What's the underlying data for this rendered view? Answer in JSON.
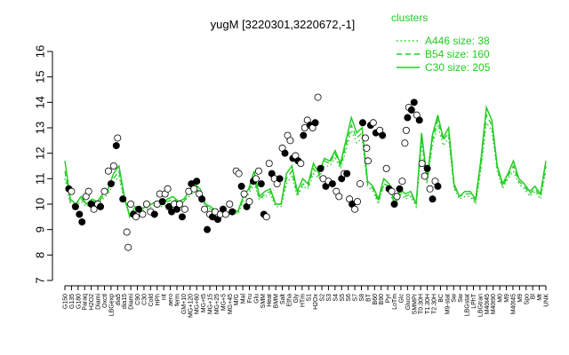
{
  "chart_data": {
    "type": "line",
    "title": "yugM [3220301,3220672,-1]",
    "xlabel": "",
    "ylabel": "",
    "ylim": [
      7,
      16
    ],
    "yticks": [
      7,
      8,
      9,
      10,
      11,
      12,
      13,
      14,
      15,
      16
    ],
    "grid": false,
    "legend_position": "top-right",
    "legend": {
      "title": "clusters",
      "entries": [
        {
          "label": "A446 size: 38",
          "style": "dotted"
        },
        {
          "label": "B54 size: 160",
          "style": "dashed"
        },
        {
          "label": "C30 size: 205",
          "style": "solid"
        }
      ]
    },
    "colors": {
      "series": "#22cc22",
      "open_points": "#ffffff",
      "filled_points": "#000000"
    },
    "x_tick_labels": [
      "G150",
      "G135",
      "G180",
      "Paraq",
      "H2O2",
      "Diami",
      "Oxctl",
      "LBGexp",
      "dia5",
      "dia15",
      "Diami",
      "C90",
      "C30",
      "Cold",
      "HPh",
      "nit",
      "aero",
      "ferm",
      "GM+10",
      "MG+120",
      "MG+60",
      "MG+t5",
      "MG+15",
      "MG+25",
      "MG+5",
      "MG+45",
      "M/G",
      "Mal",
      "Fru",
      "Glu",
      "SMM",
      "Heat",
      "BMM",
      "Salt",
      "Etha",
      "Gly",
      "HTm",
      "S1",
      "H2Ox",
      "S2",
      "S3",
      "S4",
      "S5",
      "S6",
      "S7",
      "S8",
      "BT",
      "B60",
      "B90",
      "Pyr",
      "LoTm",
      "Glc",
      "Gluco",
      "SMMPr",
      "T0.30H",
      "T1.30H",
      "T2.30H",
      "BC",
      "M9-stat",
      "Sw",
      "Sw",
      "LBGstat",
      "LPhT",
      "LBGtran",
      "M40t45",
      "M40t90",
      "M0",
      "M9",
      "M40t45",
      "M9",
      "Spo",
      "Bl",
      "Mt",
      "UNK"
    ],
    "series": [
      {
        "name": "C30 size: 205",
        "style": "solid",
        "values": [
          11.7,
          10.2,
          10.0,
          10.3,
          10.0,
          10.2,
          10.1,
          10.4,
          10.6,
          11.2,
          11.5,
          10.3,
          9.5,
          9.9,
          9.8,
          9.9,
          10.0,
          10.1,
          10.0,
          10.2,
          10.3,
          10.1,
          10.2,
          10.5,
          10.8,
          10.6,
          10.0,
          9.9,
          9.7,
          9.6,
          9.6,
          9.8,
          9.7,
          10.3,
          10.6,
          11.3,
          10.3,
          10.5,
          10.6,
          10.0,
          10.0,
          11.2,
          11.5,
          10.5,
          11.0,
          10.8,
          11.6,
          11.2,
          11.8,
          11.7,
          12.1,
          11.6,
          12.5,
          13.4,
          12.8,
          13.0,
          10.9,
          10.7,
          10.2,
          11.0,
          10.8,
          10.0,
          10.6,
          10.4,
          10.5,
          10.0,
          12.8,
          11.0,
          12.7,
          13.5,
          12.6,
          13.0,
          10.8,
          10.3,
          10.5,
          10.5,
          10.2,
          11.8,
          13.8,
          13.3,
          11.5,
          10.8,
          11.2,
          11.7,
          11.0,
          10.8,
          10.5,
          10.7,
          10.4,
          11.7
        ]
      },
      {
        "name": "B54 size: 160",
        "style": "dashed",
        "values": [
          11.3,
          10.1,
          10.0,
          10.2,
          10.0,
          10.2,
          10.0,
          10.3,
          10.5,
          11.0,
          11.3,
          10.2,
          9.6,
          9.9,
          9.8,
          9.9,
          10.0,
          10.1,
          10.0,
          10.1,
          10.2,
          10.1,
          10.1,
          10.4,
          10.6,
          10.5,
          10.0,
          9.8,
          9.7,
          9.6,
          9.6,
          9.7,
          9.7,
          10.2,
          10.5,
          11.0,
          10.2,
          10.4,
          10.5,
          10.0,
          10.0,
          11.0,
          11.3,
          10.4,
          10.8,
          10.7,
          11.4,
          11.1,
          11.7,
          11.6,
          12.0,
          11.5,
          12.3,
          13.1,
          12.6,
          12.8,
          10.8,
          10.6,
          10.1,
          10.8,
          10.7,
          10.0,
          10.5,
          10.3,
          10.4,
          10.0,
          12.6,
          10.9,
          12.5,
          13.3,
          12.5,
          12.8,
          10.7,
          10.3,
          10.4,
          10.4,
          10.1,
          11.6,
          13.5,
          13.1,
          11.4,
          10.7,
          11.1,
          11.5,
          10.9,
          10.7,
          10.4,
          10.6,
          10.3,
          11.5
        ]
      },
      {
        "name": "A446 size: 38",
        "style": "dotted",
        "values": [
          11.0,
          10.0,
          9.9,
          10.1,
          9.9,
          10.1,
          10.0,
          10.2,
          10.4,
          10.8,
          11.1,
          10.1,
          9.6,
          9.8,
          9.7,
          9.8,
          9.9,
          10.0,
          9.9,
          10.0,
          10.1,
          10.0,
          10.1,
          10.3,
          10.5,
          10.4,
          9.9,
          9.8,
          9.6,
          9.6,
          9.5,
          9.7,
          9.6,
          10.1,
          10.4,
          10.8,
          10.2,
          10.3,
          10.4,
          9.9,
          9.9,
          10.8,
          11.1,
          10.3,
          10.7,
          10.6,
          11.2,
          11.0,
          11.5,
          11.5,
          11.8,
          11.4,
          12.1,
          12.9,
          12.4,
          12.6,
          10.7,
          10.5,
          10.0,
          10.7,
          10.6,
          9.9,
          10.4,
          10.2,
          10.3,
          9.9,
          12.4,
          10.8,
          12.3,
          13.1,
          12.3,
          12.6,
          10.6,
          10.2,
          10.3,
          10.3,
          10.0,
          11.4,
          13.2,
          12.9,
          11.3,
          10.6,
          11.0,
          11.3,
          10.8,
          10.6,
          10.3,
          10.5,
          10.2,
          11.3
        ]
      }
    ],
    "points": [
      {
        "x": 0.6,
        "y": 10.6,
        "f": 1
      },
      {
        "x": 1.0,
        "y": 10.5,
        "f": 0
      },
      {
        "x": 1.6,
        "y": 9.9,
        "f": 1
      },
      {
        "x": 2.2,
        "y": 9.6,
        "f": 1
      },
      {
        "x": 2.6,
        "y": 9.3,
        "f": 1
      },
      {
        "x": 3.2,
        "y": 10.3,
        "f": 0
      },
      {
        "x": 3.6,
        "y": 10.5,
        "f": 0
      },
      {
        "x": 4.0,
        "y": 10.0,
        "f": 1
      },
      {
        "x": 4.4,
        "y": 9.8,
        "f": 0
      },
      {
        "x": 5.0,
        "y": 10.0,
        "f": 0
      },
      {
        "x": 5.4,
        "y": 9.9,
        "f": 1
      },
      {
        "x": 6.0,
        "y": 10.5,
        "f": 0
      },
      {
        "x": 6.6,
        "y": 11.3,
        "f": 0
      },
      {
        "x": 7.0,
        "y": 10.8,
        "f": 1
      },
      {
        "x": 7.4,
        "y": 11.5,
        "f": 0
      },
      {
        "x": 7.8,
        "y": 12.3,
        "f": 1
      },
      {
        "x": 8.0,
        "y": 12.6,
        "f": 0
      },
      {
        "x": 8.8,
        "y": 10.2,
        "f": 1
      },
      {
        "x": 9.4,
        "y": 8.9,
        "f": 0
      },
      {
        "x": 9.6,
        "y": 8.3,
        "f": 0
      },
      {
        "x": 10.0,
        "y": 10.0,
        "f": 0
      },
      {
        "x": 10.4,
        "y": 9.6,
        "f": 1
      },
      {
        "x": 10.8,
        "y": 9.5,
        "f": 0
      },
      {
        "x": 11.2,
        "y": 9.8,
        "f": 1
      },
      {
        "x": 11.8,
        "y": 9.6,
        "f": 0
      },
      {
        "x": 12.4,
        "y": 10.0,
        "f": 0
      },
      {
        "x": 13.0,
        "y": 9.7,
        "f": 0
      },
      {
        "x": 13.6,
        "y": 9.6,
        "f": 1
      },
      {
        "x": 14.0,
        "y": 10.0,
        "f": 0
      },
      {
        "x": 14.4,
        "y": 10.4,
        "f": 0
      },
      {
        "x": 14.8,
        "y": 10.1,
        "f": 1
      },
      {
        "x": 15.2,
        "y": 10.4,
        "f": 0
      },
      {
        "x": 15.6,
        "y": 10.6,
        "f": 0
      },
      {
        "x": 15.8,
        "y": 9.9,
        "f": 1
      },
      {
        "x": 16.2,
        "y": 9.7,
        "f": 1
      },
      {
        "x": 16.6,
        "y": 10.0,
        "f": 0
      },
      {
        "x": 17.0,
        "y": 9.8,
        "f": 1
      },
      {
        "x": 17.4,
        "y": 10.0,
        "f": 0
      },
      {
        "x": 17.8,
        "y": 9.5,
        "f": 1
      },
      {
        "x": 18.2,
        "y": 9.8,
        "f": 0
      },
      {
        "x": 18.8,
        "y": 10.5,
        "f": 0
      },
      {
        "x": 19.2,
        "y": 10.8,
        "f": 1
      },
      {
        "x": 19.6,
        "y": 10.6,
        "f": 0
      },
      {
        "x": 20.0,
        "y": 10.9,
        "f": 1
      },
      {
        "x": 20.4,
        "y": 10.4,
        "f": 0
      },
      {
        "x": 20.8,
        "y": 10.2,
        "f": 1
      },
      {
        "x": 21.2,
        "y": 9.8,
        "f": 0
      },
      {
        "x": 21.6,
        "y": 9.0,
        "f": 1
      },
      {
        "x": 22.0,
        "y": 9.6,
        "f": 0
      },
      {
        "x": 22.4,
        "y": 9.5,
        "f": 1
      },
      {
        "x": 22.8,
        "y": 9.7,
        "f": 0
      },
      {
        "x": 23.2,
        "y": 9.4,
        "f": 1
      },
      {
        "x": 23.6,
        "y": 9.6,
        "f": 0
      },
      {
        "x": 24.0,
        "y": 9.8,
        "f": 1
      },
      {
        "x": 24.4,
        "y": 9.6,
        "f": 0
      },
      {
        "x": 25.0,
        "y": 10.0,
        "f": 0
      },
      {
        "x": 25.4,
        "y": 9.7,
        "f": 1
      },
      {
        "x": 26.0,
        "y": 11.3,
        "f": 0
      },
      {
        "x": 26.4,
        "y": 11.2,
        "f": 0
      },
      {
        "x": 26.8,
        "y": 10.7,
        "f": 1
      },
      {
        "x": 27.2,
        "y": 10.4,
        "f": 0
      },
      {
        "x": 27.6,
        "y": 9.9,
        "f": 1
      },
      {
        "x": 28.0,
        "y": 10.1,
        "f": 0
      },
      {
        "x": 28.6,
        "y": 10.9,
        "f": 1
      },
      {
        "x": 29.0,
        "y": 11.0,
        "f": 0
      },
      {
        "x": 29.4,
        "y": 11.3,
        "f": 0
      },
      {
        "x": 29.8,
        "y": 10.8,
        "f": 1
      },
      {
        "x": 30.2,
        "y": 9.6,
        "f": 1
      },
      {
        "x": 30.6,
        "y": 9.5,
        "f": 0
      },
      {
        "x": 31.0,
        "y": 11.6,
        "f": 0
      },
      {
        "x": 31.4,
        "y": 11.2,
        "f": 1
      },
      {
        "x": 31.8,
        "y": 11.0,
        "f": 0
      },
      {
        "x": 32.2,
        "y": 10.8,
        "f": 0
      },
      {
        "x": 32.6,
        "y": 11.0,
        "f": 1
      },
      {
        "x": 33.0,
        "y": 12.2,
        "f": 0
      },
      {
        "x": 33.4,
        "y": 12.0,
        "f": 1
      },
      {
        "x": 33.8,
        "y": 12.7,
        "f": 0
      },
      {
        "x": 34.2,
        "y": 12.5,
        "f": 0
      },
      {
        "x": 34.6,
        "y": 11.8,
        "f": 1
      },
      {
        "x": 35.0,
        "y": 11.9,
        "f": 0
      },
      {
        "x": 35.4,
        "y": 11.7,
        "f": 1
      },
      {
        "x": 35.8,
        "y": 11.6,
        "f": 0
      },
      {
        "x": 36.2,
        "y": 12.7,
        "f": 1
      },
      {
        "x": 36.4,
        "y": 13.0,
        "f": 0
      },
      {
        "x": 36.8,
        "y": 13.3,
        "f": 0
      },
      {
        "x": 37.2,
        "y": 13.1,
        "f": 1
      },
      {
        "x": 37.6,
        "y": 13.0,
        "f": 0
      },
      {
        "x": 38.0,
        "y": 13.2,
        "f": 1
      },
      {
        "x": 38.4,
        "y": 14.2,
        "f": 0
      },
      {
        "x": 38.8,
        "y": 11.4,
        "f": 1
      },
      {
        "x": 39.2,
        "y": 11.0,
        "f": 0
      },
      {
        "x": 39.6,
        "y": 10.7,
        "f": 1
      },
      {
        "x": 40.0,
        "y": 10.9,
        "f": 0
      },
      {
        "x": 40.6,
        "y": 10.8,
        "f": 1
      },
      {
        "x": 41.2,
        "y": 10.5,
        "f": 0
      },
      {
        "x": 41.6,
        "y": 10.3,
        "f": 0
      },
      {
        "x": 42.0,
        "y": 11.0,
        "f": 1
      },
      {
        "x": 42.4,
        "y": 11.2,
        "f": 0
      },
      {
        "x": 42.8,
        "y": 11.2,
        "f": 1
      },
      {
        "x": 43.2,
        "y": 10.2,
        "f": 0
      },
      {
        "x": 43.6,
        "y": 10.0,
        "f": 1
      },
      {
        "x": 44.0,
        "y": 9.8,
        "f": 0
      },
      {
        "x": 44.4,
        "y": 10.1,
        "f": 0
      },
      {
        "x": 44.8,
        "y": 10.8,
        "f": 0
      },
      {
        "x": 45.2,
        "y": 13.2,
        "f": 1
      },
      {
        "x": 45.6,
        "y": 12.6,
        "f": 0
      },
      {
        "x": 45.8,
        "y": 12.2,
        "f": 0
      },
      {
        "x": 46.0,
        "y": 11.7,
        "f": 0
      },
      {
        "x": 46.4,
        "y": 13.1,
        "f": 1
      },
      {
        "x": 46.8,
        "y": 13.2,
        "f": 0
      },
      {
        "x": 47.2,
        "y": 12.8,
        "f": 1
      },
      {
        "x": 47.8,
        "y": 12.9,
        "f": 0
      },
      {
        "x": 48.2,
        "y": 12.7,
        "f": 1
      },
      {
        "x": 48.8,
        "y": 11.4,
        "f": 0
      },
      {
        "x": 49.2,
        "y": 10.6,
        "f": 1
      },
      {
        "x": 49.6,
        "y": 10.5,
        "f": 0
      },
      {
        "x": 50.0,
        "y": 10.0,
        "f": 1
      },
      {
        "x": 50.4,
        "y": 10.3,
        "f": 0
      },
      {
        "x": 50.8,
        "y": 10.6,
        "f": 1
      },
      {
        "x": 51.2,
        "y": 10.9,
        "f": 0
      },
      {
        "x": 51.6,
        "y": 12.4,
        "f": 0
      },
      {
        "x": 51.8,
        "y": 12.9,
        "f": 0
      },
      {
        "x": 52.0,
        "y": 13.4,
        "f": 1
      },
      {
        "x": 52.2,
        "y": 13.8,
        "f": 0
      },
      {
        "x": 52.6,
        "y": 13.7,
        "f": 1
      },
      {
        "x": 53.0,
        "y": 14.0,
        "f": 1
      },
      {
        "x": 53.4,
        "y": 13.5,
        "f": 0
      },
      {
        "x": 53.8,
        "y": 13.3,
        "f": 1
      },
      {
        "x": 54.2,
        "y": 11.6,
        "f": 0
      },
      {
        "x": 54.6,
        "y": 11.1,
        "f": 0
      },
      {
        "x": 55.0,
        "y": 11.4,
        "f": 1
      },
      {
        "x": 55.4,
        "y": 10.6,
        "f": 0
      },
      {
        "x": 55.8,
        "y": 10.2,
        "f": 1
      },
      {
        "x": 56.2,
        "y": 10.9,
        "f": 0
      },
      {
        "x": 56.6,
        "y": 10.7,
        "f": 1
      }
    ]
  }
}
